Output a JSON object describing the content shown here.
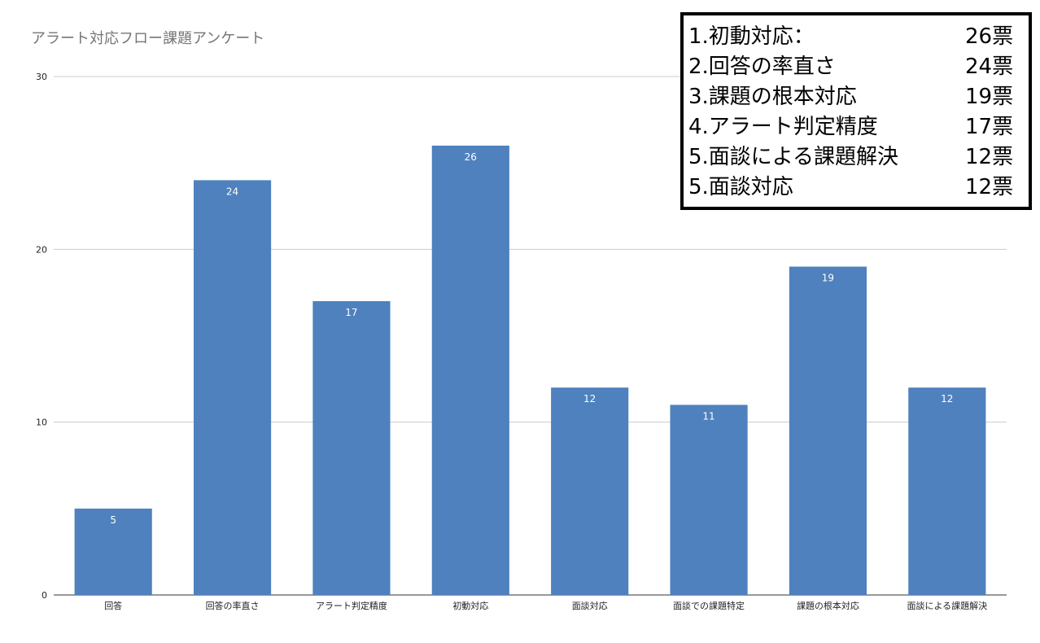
{
  "chart_data": {
    "type": "bar",
    "title": "アラート対応フロー課題アンケート",
    "xlabel": "",
    "ylabel": "",
    "ylim": [
      0,
      30
    ],
    "y_ticks": [
      0,
      10,
      20,
      30
    ],
    "grid": true,
    "categories": [
      "回答",
      "回答の率直さ",
      "アラート判定精度",
      "初動対応",
      "面談対応",
      "面談での課題特定",
      "課題の根本対応",
      "面談による課題解決"
    ],
    "values": [
      5,
      24,
      17,
      26,
      12,
      11,
      19,
      12
    ],
    "data_labels": [
      "5",
      "24",
      "17",
      "26",
      "12",
      "11",
      "19",
      "12"
    ],
    "bar_color": "#4e81bd"
  },
  "ranking": [
    {
      "label": "1.初動対応：",
      "votes": "26票"
    },
    {
      "label": "2.回答の率直さ",
      "votes": "24票"
    },
    {
      "label": "3.課題の根本対応",
      "votes": "19票"
    },
    {
      "label": "4.アラート判定精度",
      "votes": "17票"
    },
    {
      "label": "5.面談による課題解決",
      "votes": "12票"
    },
    {
      "label": "5.面談対応",
      "votes": "12票"
    }
  ]
}
